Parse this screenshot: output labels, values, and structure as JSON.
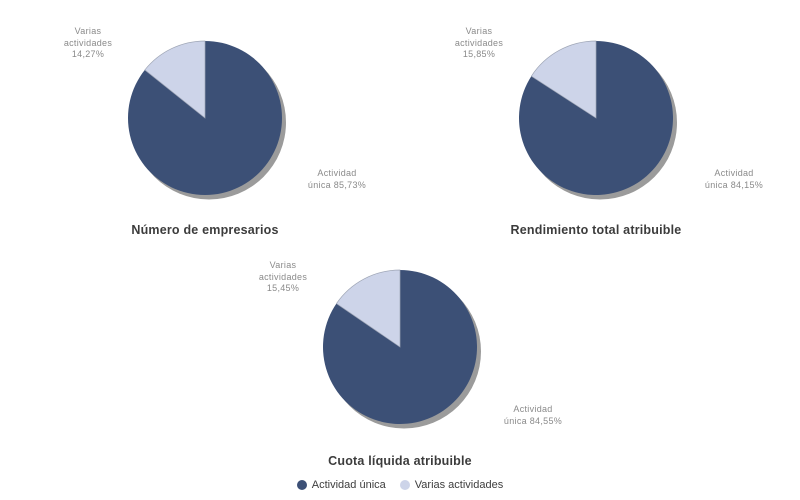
{
  "page": {
    "background": "#FFFFFF"
  },
  "style": {
    "series_color_dark": "#3C5076",
    "series_color_light": "#CDD4E9",
    "shadow_color": "#9B9B9B",
    "label_color": "#8A8A8A",
    "title_color": "#3C3C3C",
    "legend_text_color": "#3D3D3D"
  },
  "legend": {
    "items": [
      {
        "label": "Actividad única",
        "color": "#3C5076"
      },
      {
        "label": "Varias actividades",
        "color": "#CDD4E9"
      }
    ]
  },
  "chart_data": [
    {
      "type": "pie",
      "title": "Número de empresarios",
      "labels": [
        "Actividad única",
        "Varias actividades"
      ],
      "values": [
        85.73,
        14.27
      ],
      "unit": "%",
      "colors": [
        "#3C5076",
        "#CDD4E9"
      ],
      "start_angle": "12 o'clock",
      "direction": "clockwise",
      "legend_position": "bottom-shared",
      "slice_labels": [
        [
          "Actividad",
          "única 85,73%"
        ],
        [
          "Varias",
          "actividades",
          "14,27%"
        ]
      ]
    },
    {
      "type": "pie",
      "title": "Rendimiento total atribuible",
      "labels": [
        "Actividad única",
        "Varias actividades"
      ],
      "values": [
        84.15,
        15.85
      ],
      "unit": "%",
      "colors": [
        "#3C5076",
        "#CDD4E9"
      ],
      "start_angle": "12 o'clock",
      "direction": "clockwise",
      "legend_position": "bottom-shared",
      "slice_labels": [
        [
          "Actividad",
          "única 84,15%"
        ],
        [
          "Varias",
          "actividades",
          "15,85%"
        ]
      ]
    },
    {
      "type": "pie",
      "title": "Cuota líquida atribuible",
      "labels": [
        "Actividad única",
        "Varias actividades"
      ],
      "values": [
        84.55,
        15.45
      ],
      "unit": "%",
      "colors": [
        "#3C5076",
        "#CDD4E9"
      ],
      "start_angle": "12 o'clock",
      "direction": "clockwise",
      "legend_position": "bottom-shared",
      "slice_labels": [
        [
          "Actividad",
          "única 84,55%"
        ],
        [
          "Varias",
          "actividades",
          "15,45%"
        ]
      ]
    }
  ]
}
